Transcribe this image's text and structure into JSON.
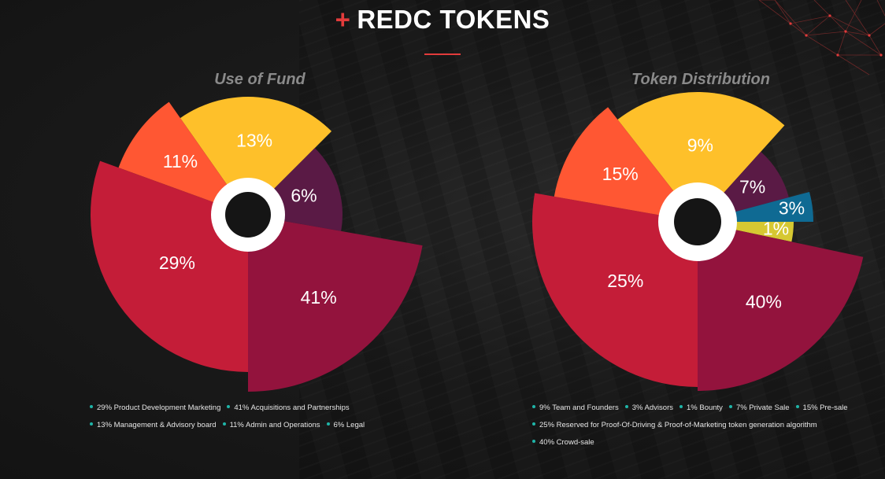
{
  "header": {
    "plus": "+",
    "title": "REDC TOKENS"
  },
  "colors": {
    "accent": "#e23b3b",
    "legend_dot": "#1fb5a8",
    "center_ring": "#ffffff",
    "center_hole": "#151515"
  },
  "chart_data": [
    {
      "type": "pie",
      "title": "Use of Fund",
      "slices": [
        {
          "label": "13%",
          "value": 13,
          "color": "#fec02a"
        },
        {
          "label": "6%",
          "value": 6,
          "color": "#5a1a45"
        },
        {
          "label": "41%",
          "value": 41,
          "color": "#93133d"
        },
        {
          "label": "29%",
          "value": 29,
          "color": "#c41d38"
        },
        {
          "label": "11%",
          "value": 11,
          "color": "#ff5733"
        }
      ],
      "legend": [
        [
          "29% Product Development Marketing",
          "41% Acquisitions and Partnerships"
        ],
        [
          "13% Management & Advisory board",
          "11% Admin and Operations",
          "6% Legal"
        ]
      ]
    },
    {
      "type": "pie",
      "title": "Token Distribution",
      "slices": [
        {
          "label": "9%",
          "value": 9,
          "color": "#fec02a"
        },
        {
          "label": "7%",
          "value": 7,
          "color": "#5a1a45"
        },
        {
          "label": "3%",
          "value": 3,
          "color": "#0f6a93"
        },
        {
          "label": "1%",
          "value": 1,
          "color": "#d6c832"
        },
        {
          "label": "40%",
          "value": 40,
          "color": "#93133d"
        },
        {
          "label": "25%",
          "value": 25,
          "color": "#c41d38"
        },
        {
          "label": "15%",
          "value": 15,
          "color": "#ff5733"
        }
      ],
      "legend": [
        [
          "9% Team and Founders",
          "3% Advisors",
          "1% Bounty",
          "7% Private Sale",
          "15% Pre-sale"
        ],
        [
          "25% Reserved for Proof-Of-Driving & Proof-of-Marketing token generation algorithm"
        ],
        [
          "40% Crowd-sale"
        ]
      ]
    }
  ]
}
